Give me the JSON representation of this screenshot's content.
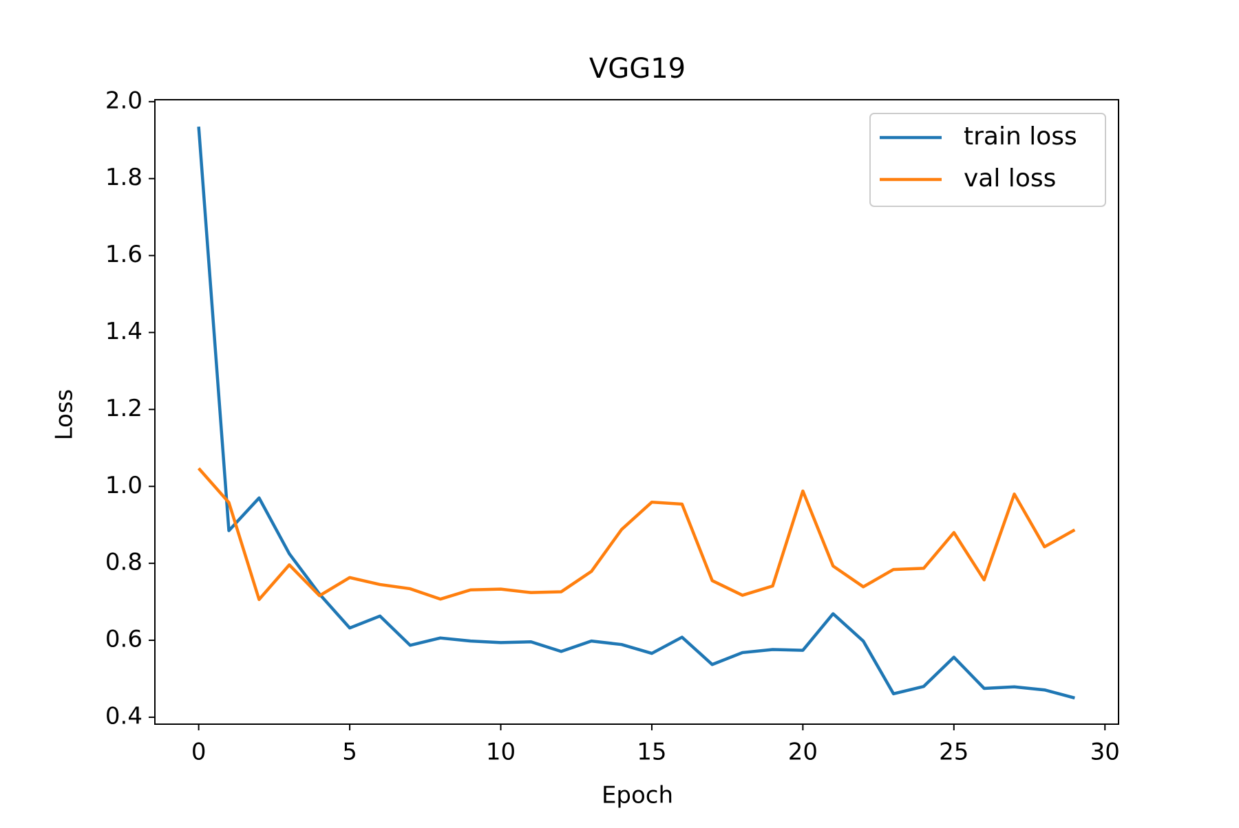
{
  "chart_data": {
    "type": "line",
    "title": "VGG19",
    "xlabel": "Epoch",
    "ylabel": "Loss",
    "xlim": [
      -1.45,
      30.45
    ],
    "ylim": [
      0.382,
      2.005
    ],
    "x_ticks": [
      0,
      5,
      10,
      15,
      20,
      25,
      30
    ],
    "y_ticks": [
      0.4,
      0.6,
      0.8,
      1.0,
      1.2,
      1.4,
      1.6,
      1.8,
      2.0
    ],
    "y_tick_labels": [
      "0.4",
      "0.6",
      "0.8",
      "1.0",
      "1.2",
      "1.4",
      "1.6",
      "1.8",
      "2.0"
    ],
    "grid": false,
    "legend_position": "top-right",
    "x": [
      0,
      1,
      2,
      3,
      4,
      5,
      6,
      7,
      8,
      9,
      10,
      11,
      12,
      13,
      14,
      15,
      16,
      17,
      18,
      19,
      20,
      21,
      22,
      23,
      24,
      25,
      26,
      27,
      28,
      29
    ],
    "series": [
      {
        "name": "train loss",
        "color": "#1f77b4",
        "values": [
          1.935,
          0.885,
          0.97,
          0.825,
          0.72,
          0.632,
          0.663,
          0.587,
          0.606,
          0.598,
          0.594,
          0.596,
          0.571,
          0.598,
          0.589,
          0.566,
          0.608,
          0.537,
          0.568,
          0.576,
          0.574,
          0.669,
          0.598,
          0.461,
          0.48,
          0.556,
          0.475,
          0.479,
          0.471,
          0.45
        ]
      },
      {
        "name": "val loss",
        "color": "#ff7f0e",
        "values": [
          1.047,
          0.958,
          0.706,
          0.796,
          0.716,
          0.763,
          0.745,
          0.734,
          0.707,
          0.731,
          0.733,
          0.724,
          0.726,
          0.779,
          0.888,
          0.959,
          0.954,
          0.755,
          0.717,
          0.741,
          0.988,
          0.793,
          0.739,
          0.784,
          0.787,
          0.88,
          0.757,
          0.98,
          0.843,
          0.887
        ]
      }
    ]
  }
}
